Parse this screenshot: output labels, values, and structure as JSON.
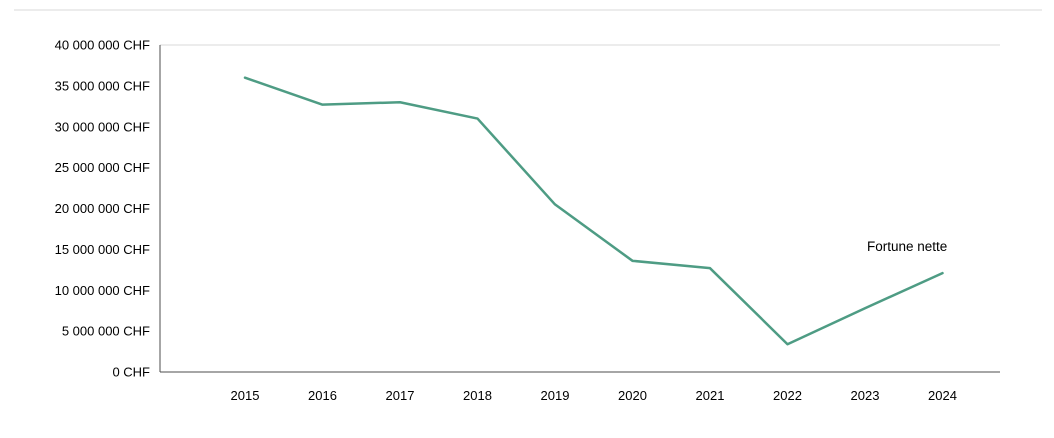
{
  "chart_data": {
    "type": "line",
    "categories": [
      "2015",
      "2016",
      "2017",
      "2018",
      "2019",
      "2020",
      "2021",
      "2022",
      "2023",
      "2024"
    ],
    "series": [
      {
        "name": "Fortune nette",
        "values": [
          36000000,
          32700000,
          33000000,
          31000000,
          20500000,
          13600000,
          12700000,
          3400000,
          7800000,
          12100000
        ],
        "color": "#4e9c84"
      }
    ],
    "title": "",
    "xlabel": "",
    "ylabel": "",
    "ylim": [
      0,
      40000000
    ],
    "y_tick_step": 5000000,
    "y_tick_labels": [
      "0 CHF",
      "5 000 000 CHF",
      "10 000 000 CHF",
      "15 000 000 CHF",
      "20 000 000 CHF",
      "25 000 000 CHF",
      "30 000 000 CHF",
      "35 000 000 CHF",
      "40 000 000 CHF"
    ],
    "grid": "top-gridline-only",
    "legend_position": "inline-right-of-line"
  },
  "colors": {
    "line": "#4e9c84",
    "axis": "#4d4d4d",
    "grid": "#d9d9d9",
    "text": "#000000",
    "background": "#ffffff"
  }
}
